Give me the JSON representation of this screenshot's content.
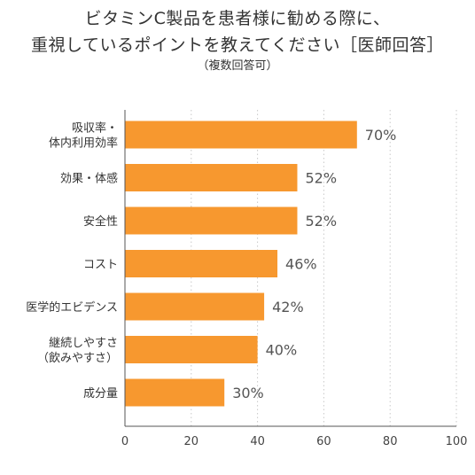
{
  "title_lines": [
    "ビタミンC製品を患者様に勧める際に、",
    "重視しているポイントを教えてください［医師回答］"
  ],
  "subtitle": "（複数回答可）",
  "colors": {
    "bar": "#F7982F",
    "grid": "#C8C8C8",
    "axis": "#555555"
  },
  "chart_data": {
    "type": "bar",
    "orientation": "horizontal",
    "categories": [
      [
        "吸収率・",
        "体内利用効率"
      ],
      [
        "効果・体感"
      ],
      [
        "安全性"
      ],
      [
        "コスト"
      ],
      [
        "医学的エビデンス"
      ],
      [
        "継続しやすさ",
        "（飲みやすさ）"
      ],
      [
        "成分量"
      ]
    ],
    "values": [
      70,
      52,
      52,
      46,
      42,
      40,
      30
    ],
    "value_labels": [
      "70%",
      "52%",
      "52%",
      "46%",
      "42%",
      "40%",
      "30%"
    ],
    "xlim": [
      0,
      100
    ],
    "xticks": [
      0,
      20,
      40,
      60,
      80,
      100
    ],
    "grid": "vertical-dotted"
  }
}
